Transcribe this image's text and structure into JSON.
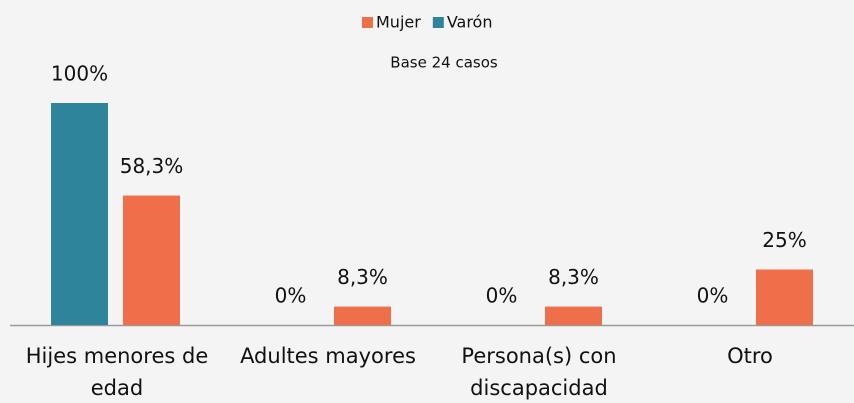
{
  "chart_data": {
    "type": "bar",
    "subtitle": "Base 24 casos",
    "categories": [
      "Hijes menores de edad",
      "Adultes mayores",
      "Persona(s) con discapacidad",
      "Otro"
    ],
    "series": [
      {
        "name": "Varón",
        "color": "#2e859b",
        "values": [
          100,
          0,
          0,
          0
        ],
        "value_labels": [
          "100%",
          "0%",
          "0%",
          "0%"
        ]
      },
      {
        "name": "Mujer",
        "color": "#ef6f4a",
        "values": [
          58.3,
          8.3,
          8.3,
          25
        ],
        "value_labels": [
          "58,3%",
          "8,3%",
          "8,3%",
          "25%"
        ]
      }
    ],
    "legend": "top"
  }
}
